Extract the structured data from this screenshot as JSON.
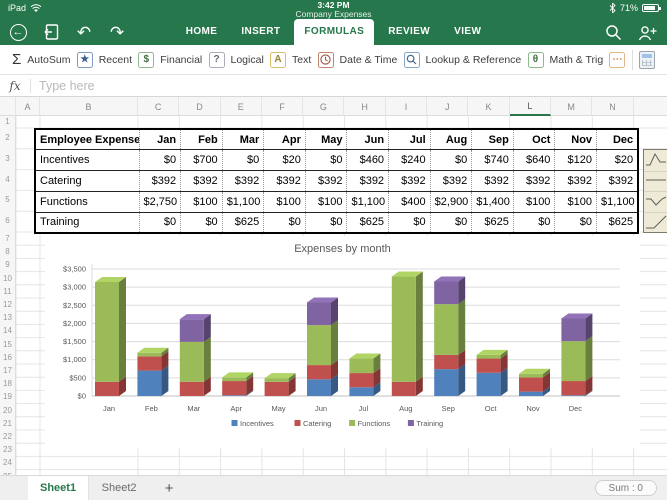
{
  "status_bar": {
    "device_label": "iPad",
    "time": "3:42 PM",
    "document_title": "Company Expenses",
    "battery_percent": "71%"
  },
  "nav_bar": {
    "tabs": [
      "HOME",
      "INSERT",
      "FORMULAS",
      "REVIEW",
      "VIEW"
    ],
    "active_tab": "FORMULAS"
  },
  "ribbon": {
    "buttons": [
      {
        "label": "AutoSum",
        "icon": "sigma-icon",
        "accent": "#333333",
        "boxed": false
      },
      {
        "label": "Recent",
        "icon": "star-icon",
        "accent": "#7f9cc0",
        "glyph_color": "#3b5f8f",
        "boxed": true
      },
      {
        "label": "Financial",
        "icon": "financial-icon",
        "accent": "#93b793",
        "glyph_color": "#3e6e3e",
        "boxed": true
      },
      {
        "label": "Logical",
        "icon": "question-icon",
        "accent": "#b3aabb",
        "glyph_color": "#6b6374",
        "boxed": true
      },
      {
        "label": "Text",
        "icon": "text-icon",
        "accent": "#d5c06a",
        "glyph_color": "#97852e",
        "boxed": true
      },
      {
        "label": "Date & Time",
        "icon": "clock-icon",
        "accent": "#c08474",
        "glyph_color": "#a2503f",
        "boxed": true
      },
      {
        "label": "Lookup & Reference",
        "icon": "magnifier-icon",
        "accent": "#84a7c9",
        "glyph_color": "#46688f",
        "boxed": true
      },
      {
        "label": "Math & Trig",
        "icon": "theta-icon",
        "accent": "#8db88d",
        "glyph_color": "#41703f",
        "boxed": true
      },
      {
        "label": "",
        "icon": "ellipsis-icon",
        "accent": "#e2b588",
        "glyph_color": "#c58945",
        "boxed": true
      }
    ],
    "calculator_icon": "calculator-icon"
  },
  "formula_bar": {
    "fx_label": "fx",
    "placeholder": "Type here"
  },
  "grid": {
    "column_labels": [
      "A",
      "B",
      "C",
      "D",
      "E",
      "F",
      "G",
      "H",
      "I",
      "J",
      "K",
      "L",
      "M",
      "N"
    ],
    "selected_column": "L",
    "row_count": 25
  },
  "table": {
    "headers": [
      "Employee Expenses",
      "Jan",
      "Feb",
      "Mar",
      "Apr",
      "May",
      "Jun",
      "Jul",
      "Aug",
      "Sep",
      "Oct",
      "Nov",
      "Dec"
    ],
    "rows": [
      {
        "label": "Incentives",
        "values": [
          "$0",
          "$700",
          "$0",
          "$20",
          "$0",
          "$460",
          "$240",
          "$0",
          "$740",
          "$640",
          "$120",
          "$20"
        ]
      },
      {
        "label": "Catering",
        "values": [
          "$392",
          "$392",
          "$392",
          "$392",
          "$392",
          "$392",
          "$392",
          "$392",
          "$392",
          "$392",
          "$392",
          "$392"
        ]
      },
      {
        "label": "Functions",
        "values": [
          "$2,750",
          "$100",
          "$1,100",
          "$100",
          "$100",
          "$1,100",
          "$400",
          "$2,900",
          "$1,400",
          "$100",
          "$100",
          "$1,100"
        ]
      },
      {
        "label": "Training",
        "values": [
          "$0",
          "$0",
          "$625",
          "$0",
          "$0",
          "$625",
          "$0",
          "$0",
          "$625",
          "$0",
          "$0",
          "$625"
        ]
      }
    ]
  },
  "sparklines": {
    "shapes": [
      "peak",
      "flat",
      "dip",
      "rise"
    ]
  },
  "chart_data": {
    "type": "bar",
    "stacked": true,
    "effect": "3d",
    "title": "Expenses by month",
    "categories": [
      "Jan",
      "Feb",
      "Mar",
      "Apr",
      "May",
      "Jun",
      "Jul",
      "Aug",
      "Sep",
      "Oct",
      "Nov",
      "Dec"
    ],
    "series": [
      {
        "name": "Incentives",
        "color": "#4F81BD",
        "values": [
          0,
          700,
          0,
          20,
          0,
          460,
          240,
          0,
          740,
          640,
          120,
          20
        ]
      },
      {
        "name": "Catering",
        "color": "#C0504D",
        "values": [
          392,
          392,
          392,
          392,
          392,
          392,
          392,
          392,
          392,
          392,
          392,
          392
        ]
      },
      {
        "name": "Functions",
        "color": "#9BBB59",
        "values": [
          2750,
          100,
          1100,
          100,
          100,
          1100,
          400,
          2900,
          1400,
          100,
          100,
          1100
        ]
      },
      {
        "name": "Training",
        "color": "#8064A2",
        "values": [
          0,
          0,
          625,
          0,
          0,
          625,
          0,
          0,
          625,
          0,
          0,
          625
        ]
      }
    ],
    "xlabel": "",
    "ylabel": "",
    "ylim": [
      0,
      3500
    ],
    "ytick_step": 500,
    "ytick_labels": [
      "$0",
      "$500",
      "$1,000",
      "$1,500",
      "$2,000",
      "$2,500",
      "$3,000",
      "$3,500"
    ],
    "grid": true,
    "legend_position": "bottom"
  },
  "sheet_bar": {
    "tabs": [
      {
        "label": "Sheet1",
        "active": true
      },
      {
        "label": "Sheet2",
        "active": false
      }
    ],
    "add_label": "+",
    "sum_label": "Sum : 0"
  },
  "colors": {
    "brand_green": "#26774b",
    "tab_active_text": "#26774b",
    "gridline": "#e4e4e4",
    "chart_text": "#595959"
  }
}
